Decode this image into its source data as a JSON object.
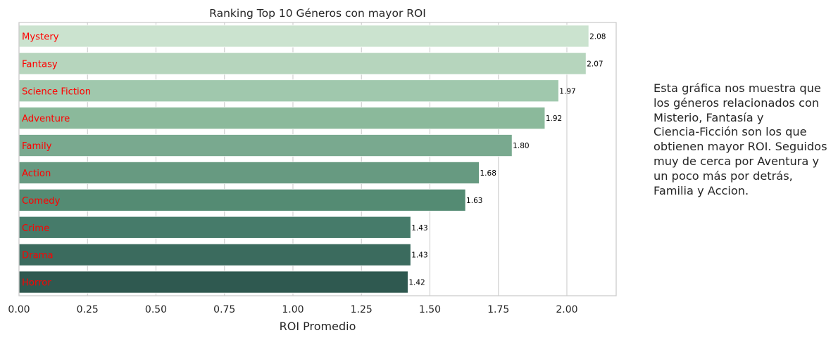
{
  "chart_data": {
    "type": "bar",
    "orientation": "horizontal",
    "title": "Ranking Top 10 Géneros con mayor ROI",
    "xlabel": "ROI Promedio",
    "ylabel": "",
    "xlim": [
      0,
      2.18
    ],
    "xticks": [
      "0.00",
      "0.25",
      "0.50",
      "0.75",
      "1.00",
      "1.25",
      "1.50",
      "1.75",
      "2.00"
    ],
    "grid": true,
    "categories": [
      "Mystery",
      "Fantasy",
      "Science Fiction",
      "Adventure",
      "Family",
      "Action",
      "Comedy",
      "Crime",
      "Drama",
      "Horror"
    ],
    "values": [
      2.08,
      2.07,
      1.97,
      1.92,
      1.8,
      1.68,
      1.63,
      1.43,
      1.43,
      1.42
    ],
    "value_labels": [
      "2.08",
      "2.07",
      "1.97",
      "1.92",
      "1.80",
      "1.68",
      "1.63",
      "1.43",
      "1.43",
      "1.42"
    ],
    "bar_colors": [
      "#cbe3cf",
      "#b6d5bd",
      "#a0c8ad",
      "#8bb99b",
      "#79a98f",
      "#679a81",
      "#548b73",
      "#467b6a",
      "#3b6b5e",
      "#2f5950"
    ],
    "label_color": "#ff0000"
  },
  "annotation": "Esta gráfica nos muestra que\nlos géneros relacionados con\nMisterio, Fantasía y\nCiencia-Ficción son los que\nobtienen mayor ROI. Seguidos\nmuy de cerca por Aventura y\nun poco más por detrás,\nFamilia y Accion."
}
